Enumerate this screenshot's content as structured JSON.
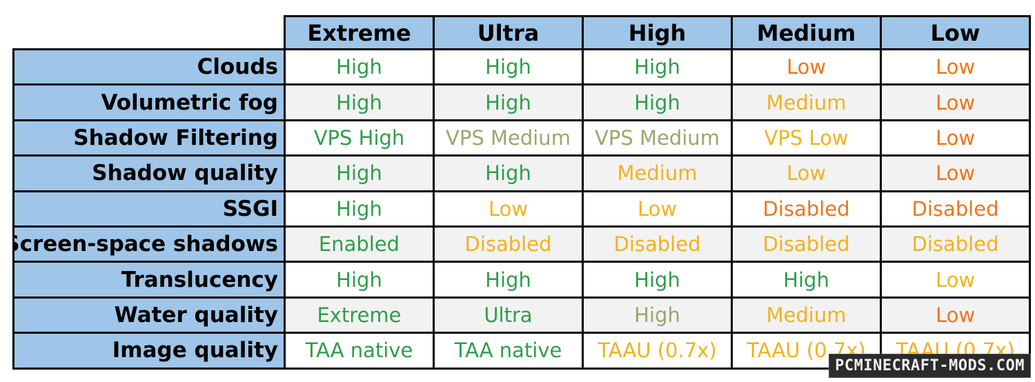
{
  "colors": {
    "header_bg": "#9fc5e8",
    "green": "#2e9e4a",
    "olive": "#9aa86a",
    "yellow": "#f2b21b",
    "orange": "#f2731b"
  },
  "columns": [
    "Extreme",
    "Ultra",
    "High",
    "Medium",
    "Low"
  ],
  "rows": [
    {
      "label": "Clouds",
      "cells": [
        {
          "text": "High",
          "color": "green"
        },
        {
          "text": "High",
          "color": "green"
        },
        {
          "text": "High",
          "color": "green"
        },
        {
          "text": "Low",
          "color": "orange"
        },
        {
          "text": "Low",
          "color": "orange"
        }
      ]
    },
    {
      "label": "Volumetric fog",
      "cells": [
        {
          "text": "High",
          "color": "green"
        },
        {
          "text": "High",
          "color": "green"
        },
        {
          "text": "High",
          "color": "green"
        },
        {
          "text": "Medium",
          "color": "yellow"
        },
        {
          "text": "Low",
          "color": "orange"
        }
      ]
    },
    {
      "label": "Shadow Filtering",
      "cells": [
        {
          "text": "VPS High",
          "color": "green"
        },
        {
          "text": "VPS Medium",
          "color": "olive"
        },
        {
          "text": "VPS Medium",
          "color": "olive"
        },
        {
          "text": "VPS Low",
          "color": "yellow"
        },
        {
          "text": "Low",
          "color": "orange"
        }
      ]
    },
    {
      "label": "Shadow quality",
      "cells": [
        {
          "text": "High",
          "color": "green"
        },
        {
          "text": "High",
          "color": "green"
        },
        {
          "text": "Medium",
          "color": "yellow"
        },
        {
          "text": "Low",
          "color": "yellow"
        },
        {
          "text": "Low",
          "color": "orange"
        }
      ]
    },
    {
      "label": "SSGI",
      "cells": [
        {
          "text": "High",
          "color": "green"
        },
        {
          "text": "Low",
          "color": "yellow"
        },
        {
          "text": "Low",
          "color": "yellow"
        },
        {
          "text": "Disabled",
          "color": "orange"
        },
        {
          "text": "Disabled",
          "color": "orange"
        }
      ]
    },
    {
      "label": "Screen-space shadows",
      "cells": [
        {
          "text": "Enabled",
          "color": "green"
        },
        {
          "text": "Disabled",
          "color": "yellow"
        },
        {
          "text": "Disabled",
          "color": "yellow"
        },
        {
          "text": "Disabled",
          "color": "yellow"
        },
        {
          "text": "Disabled",
          "color": "yellow"
        }
      ]
    },
    {
      "label": "Translucency",
      "cells": [
        {
          "text": "High",
          "color": "green"
        },
        {
          "text": "High",
          "color": "green"
        },
        {
          "text": "High",
          "color": "green"
        },
        {
          "text": "High",
          "color": "green"
        },
        {
          "text": "Low",
          "color": "yellow"
        }
      ]
    },
    {
      "label": "Water quality",
      "cells": [
        {
          "text": "Extreme",
          "color": "green"
        },
        {
          "text": "Ultra",
          "color": "green"
        },
        {
          "text": "High",
          "color": "olive"
        },
        {
          "text": "Medium",
          "color": "yellow"
        },
        {
          "text": "Low",
          "color": "orange"
        }
      ]
    },
    {
      "label": "Image quality",
      "cells": [
        {
          "text": "TAA native",
          "color": "green"
        },
        {
          "text": "TAA native",
          "color": "green"
        },
        {
          "text": "TAAU (0.7x)",
          "color": "yellow"
        },
        {
          "text": "TAAU (0.7x)",
          "color": "yellow"
        },
        {
          "text": "TAAU (0.7x)",
          "color": "yellow"
        }
      ]
    }
  ],
  "watermark": "PCMINECRAFT-MODS.COM"
}
